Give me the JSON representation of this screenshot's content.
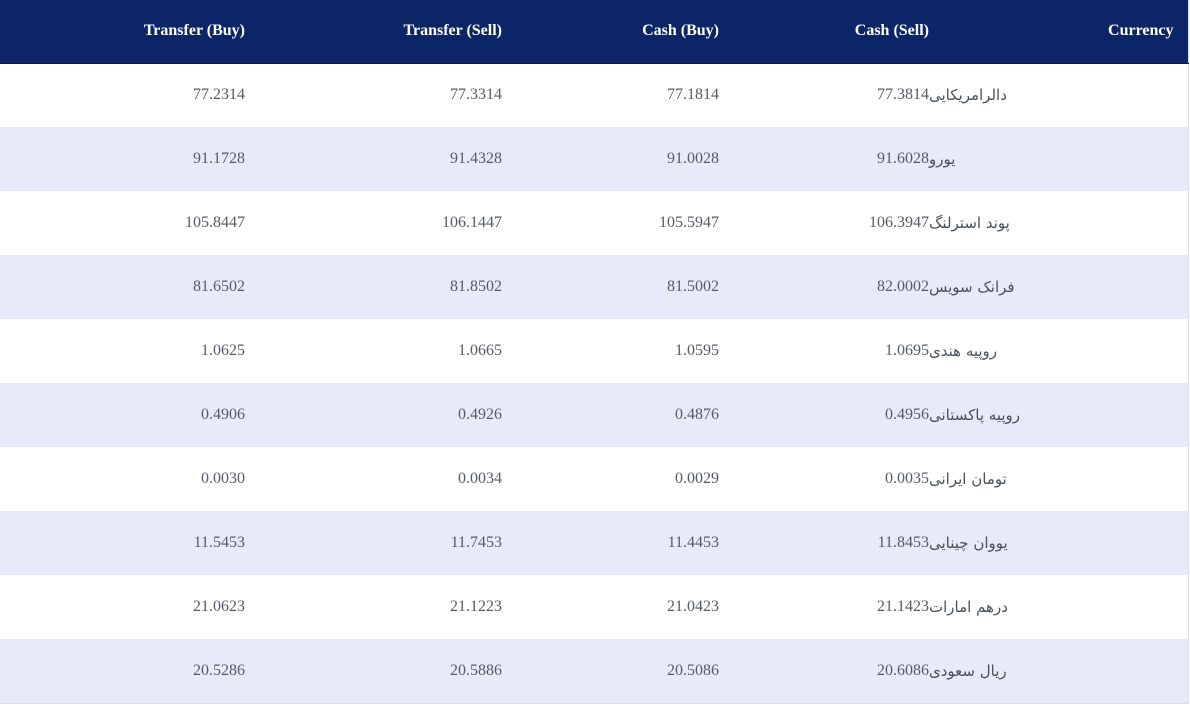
{
  "table": {
    "headers": {
      "transfer_buy": "Transfer (Buy)",
      "transfer_sell": "Transfer (Sell)",
      "cash_buy": "Cash (Buy)",
      "cash_sell": "Cash (Sell)",
      "currency": "Currency"
    },
    "rows": [
      {
        "transfer_buy": "77.2314",
        "transfer_sell": "77.3314",
        "cash_buy": "77.1814",
        "cash_sell": "77.3814",
        "currency": "دالرامریکایی"
      },
      {
        "transfer_buy": "91.1728",
        "transfer_sell": "91.4328",
        "cash_buy": "91.0028",
        "cash_sell": "91.6028",
        "currency": "یورو"
      },
      {
        "transfer_buy": "105.8447",
        "transfer_sell": "106.1447",
        "cash_buy": "105.5947",
        "cash_sell": "106.3947",
        "currency": "پوند استرلنگ"
      },
      {
        "transfer_buy": "81.6502",
        "transfer_sell": "81.8502",
        "cash_buy": "81.5002",
        "cash_sell": "82.0002",
        "currency": "فرانک سویس"
      },
      {
        "transfer_buy": "1.0625",
        "transfer_sell": "1.0665",
        "cash_buy": "1.0595",
        "cash_sell": "1.0695",
        "currency": "روپیه هندی"
      },
      {
        "transfer_buy": "0.4906",
        "transfer_sell": "0.4926",
        "cash_buy": "0.4876",
        "cash_sell": "0.4956",
        "currency": "روپیه پاکستانی"
      },
      {
        "transfer_buy": "0.0030",
        "transfer_sell": "0.0034",
        "cash_buy": "0.0029",
        "cash_sell": "0.0035",
        "currency": "تومان ایرانی"
      },
      {
        "transfer_buy": "11.5453",
        "transfer_sell": "11.7453",
        "cash_buy": "11.4453",
        "cash_sell": "11.8453",
        "currency": "یووان چینایی"
      },
      {
        "transfer_buy": "21.0623",
        "transfer_sell": "21.1223",
        "cash_buy": "21.0423",
        "cash_sell": "21.1423",
        "currency": "درهم امارات"
      },
      {
        "transfer_buy": "20.5286",
        "transfer_sell": "20.5886",
        "cash_buy": "20.5086",
        "cash_sell": "20.6086",
        "currency": "ریال سعودی"
      }
    ]
  }
}
